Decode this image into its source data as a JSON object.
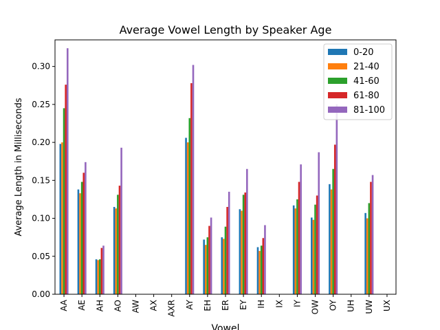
{
  "chart_data": {
    "type": "bar",
    "title": "Average Vowel Length by Speaker Age",
    "xlabel": "Vowel",
    "ylabel": "Average Length in Milliseconds",
    "ylim": [
      0,
      0.335
    ],
    "yticks": [
      "0.00",
      "0.05",
      "0.10",
      "0.15",
      "0.20",
      "0.25",
      "0.30"
    ],
    "grid": false,
    "legend_position": "top-right",
    "categories": [
      "AA",
      "AE",
      "AH",
      "AO",
      "AW",
      "AX",
      "AXR",
      "AY",
      "EH",
      "ER",
      "EY",
      "IH",
      "IX",
      "IY",
      "OW",
      "OY",
      "UH",
      "UW",
      "UX"
    ],
    "series": [
      {
        "name": "0-20",
        "color": "#1f77b4",
        "values": [
          0.198,
          0.138,
          0.046,
          0.115,
          0,
          0,
          0,
          0.206,
          0.072,
          0.075,
          0.112,
          0.062,
          0,
          0.117,
          0.101,
          0.145,
          0,
          0.107,
          0
        ]
      },
      {
        "name": "21-40",
        "color": "#ff7f0e",
        "values": [
          0.2,
          0.133,
          0.045,
          0.113,
          0,
          0,
          0,
          0.2,
          0.065,
          0.073,
          0.11,
          0.057,
          0,
          0.113,
          0.098,
          0.138,
          0,
          0.1,
          0
        ]
      },
      {
        "name": "41-60",
        "color": "#2ca02c",
        "values": [
          0.245,
          0.148,
          0.046,
          0.131,
          0,
          0,
          0,
          0.232,
          0.075,
          0.089,
          0.131,
          0.064,
          0,
          0.125,
          0.118,
          0.165,
          0,
          0.12,
          0
        ]
      },
      {
        "name": "61-80",
        "color": "#d62728",
        "values": [
          0.276,
          0.16,
          0.061,
          0.143,
          0,
          0,
          0,
          0.278,
          0.09,
          0.115,
          0.134,
          0.074,
          0,
          0.148,
          0.13,
          0.197,
          0,
          0.148,
          0
        ]
      },
      {
        "name": "81-100",
        "color": "#9467bd",
        "values": [
          0.324,
          0.174,
          0.064,
          0.193,
          0,
          0,
          0,
          0.302,
          0.101,
          0.135,
          0.165,
          0.091,
          0,
          0.171,
          0.187,
          0.25,
          0,
          0.157,
          0
        ]
      }
    ]
  }
}
